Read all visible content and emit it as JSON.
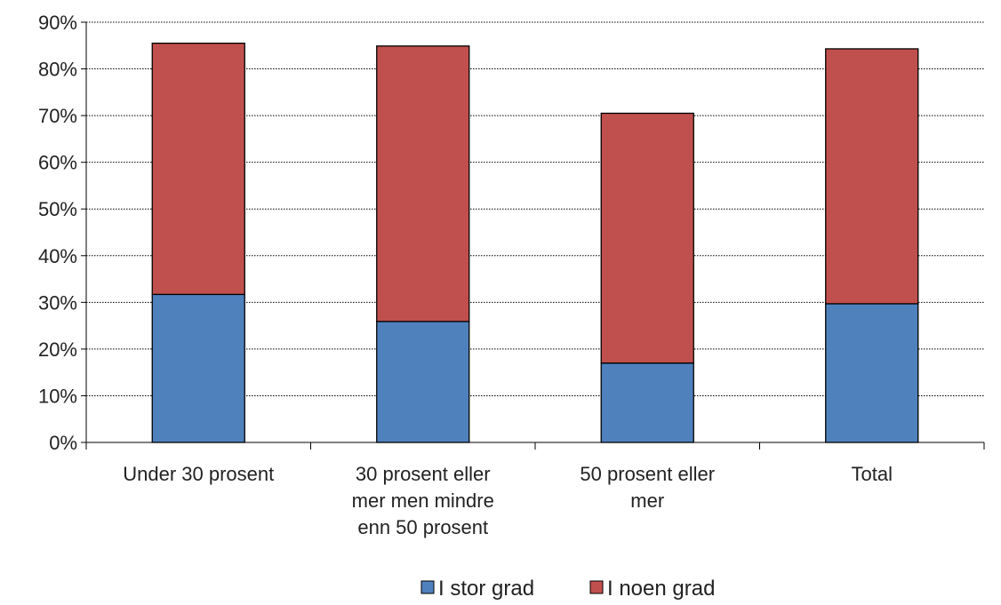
{
  "chart_data": {
    "type": "bar",
    "stacked": true,
    "categories": [
      [
        "Under 30 prosent"
      ],
      [
        "30 prosent eller",
        "mer men mindre",
        "enn 50 prosent"
      ],
      [
        "50 prosent eller",
        "mer"
      ],
      [
        "Total"
      ]
    ],
    "series": [
      {
        "name": "I stor grad",
        "color": "#4f81bd",
        "values": [
          31.7,
          25.9,
          17.0,
          29.7
        ]
      },
      {
        "name": "I noen grad",
        "color": "#c0504d",
        "values": [
          53.8,
          59.0,
          53.5,
          54.6
        ]
      }
    ],
    "y_ticks": [
      "0%",
      "10%",
      "20%",
      "30%",
      "40%",
      "50%",
      "60%",
      "70%",
      "80%",
      "90%"
    ],
    "ylim": [
      0,
      90
    ],
    "grid": true,
    "legend_position": "bottom"
  }
}
